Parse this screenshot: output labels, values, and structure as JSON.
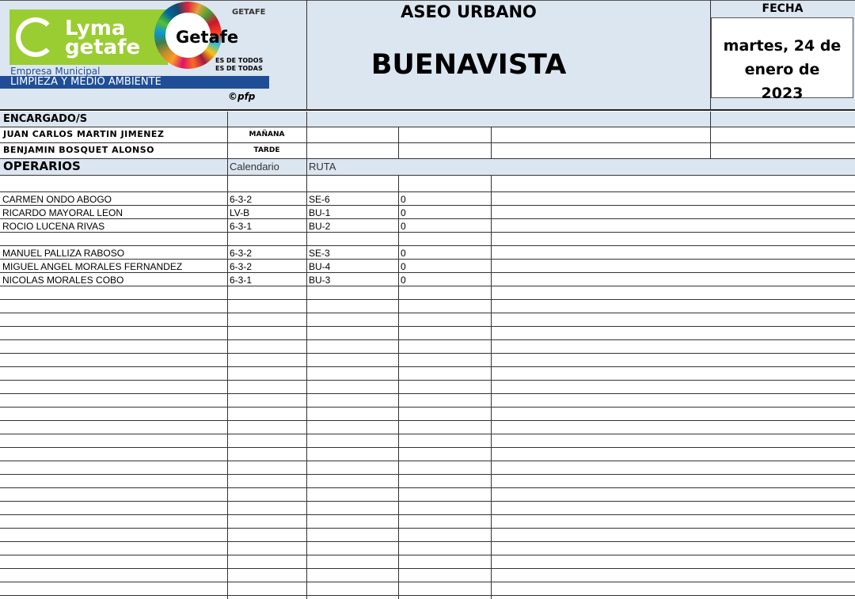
{
  "header": {
    "logo_text": "Lyma getafe",
    "logo_sub1": "Empresa Municipal",
    "logo_sub2": "LIMPIEZA Y MEDIO AMBIENTE",
    "getafe_logo": "Getafe",
    "ayto": "GETAFE",
    "slogan1": "ES DE TODOS",
    "slogan2": "ES DE TODAS",
    "copyright": "©pfp",
    "title": "ASEO URBANO",
    "subtitle": "BUENAVISTA",
    "fecha_label": "FECHA",
    "fecha_value": "martes, 24 de enero de 2023"
  },
  "encargados": {
    "label": "ENCARGADO/S",
    "rows": [
      {
        "name": "JUAN CARLOS MARTIN JIMENEZ",
        "turno": "MAÑANA"
      },
      {
        "name": "BENJAMIN BOSQUET ALONSO",
        "turno": "TARDE"
      }
    ]
  },
  "operarios": {
    "label": "OPERARIOS",
    "col_calendario": "Calendario",
    "col_ruta": "RUTA",
    "rows": [
      {
        "name": "",
        "cal": "",
        "ruta": "",
        "val": ""
      },
      {
        "name": "CARMEN ONDO ABOGO",
        "cal": "6-3-2",
        "ruta": "SE-6",
        "val": "0"
      },
      {
        "name": "RICARDO MAYORAL LEON",
        "cal": "LV-B",
        "ruta": "BU-1",
        "val": "0"
      },
      {
        "name": "ROCIO LUCENA RIVAS",
        "cal": "6-3-1",
        "ruta": "BU-2",
        "val": "0"
      },
      {
        "name": "",
        "cal": "",
        "ruta": "",
        "val": ""
      },
      {
        "name": "MANUEL PALLIZA RABOSO",
        "cal": "6-3-2",
        "ruta": "SE-3",
        "val": "0"
      },
      {
        "name": "MIGUEL ANGEL MORALES FERNANDEZ",
        "cal": "6-3-2",
        "ruta": "BU-4",
        "val": "0"
      },
      {
        "name": "NICOLAS MORALES COBO",
        "cal": "6-3-1",
        "ruta": "BU-3",
        "val": "0"
      }
    ]
  }
}
